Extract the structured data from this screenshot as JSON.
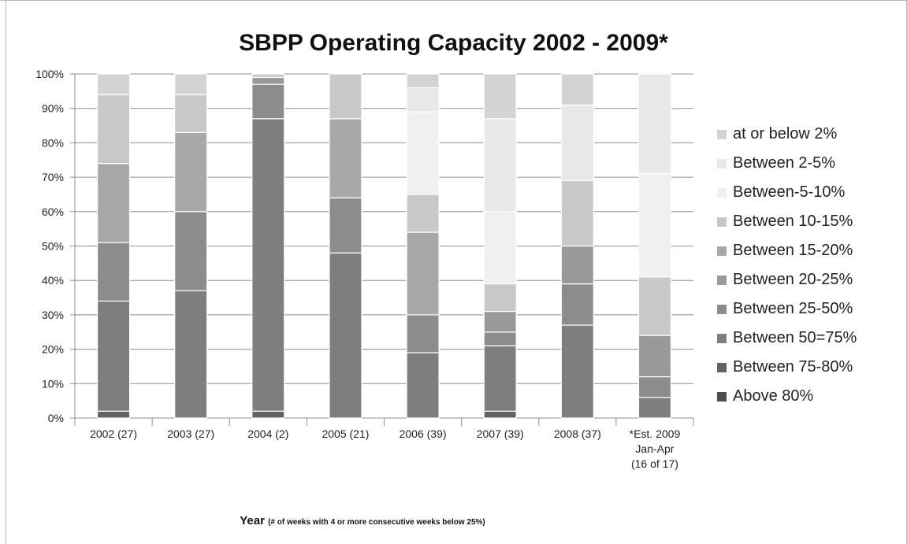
{
  "chart_data": {
    "type": "bar",
    "stacked": true,
    "title": "SBPP Operating Capacity 2002 - 2009*",
    "xlabel": "Year",
    "xlabel_note": "(# of weeks with 4 or more consecutive weeks below 25%)",
    "ylabel": "",
    "ylim": [
      0,
      100
    ],
    "yticks": [
      "0%",
      "10%",
      "20%",
      "30%",
      "40%",
      "50%",
      "60%",
      "70%",
      "80%",
      "90%",
      "100%"
    ],
    "grid": true,
    "legend_position": "right",
    "categories": [
      [
        "2002 (27)"
      ],
      [
        "2003 (27)"
      ],
      [
        "2004 (2)"
      ],
      [
        "2005 (21)"
      ],
      [
        "2006 (39)"
      ],
      [
        "2007 (39)"
      ],
      [
        "2008 (37)"
      ],
      [
        "*Est. 2009",
        "Jan-Apr",
        "(16 of 17)"
      ]
    ],
    "series": [
      {
        "name": "Above 80%",
        "color": "#4d4d4d",
        "values": [
          0,
          0,
          0,
          0,
          0,
          0,
          0,
          0
        ]
      },
      {
        "name": "Between 75-80%",
        "color": "#636363",
        "values": [
          2,
          0,
          2,
          0,
          0,
          2,
          0,
          0
        ]
      },
      {
        "name": "Between 50=75%",
        "color": "#7e7e7e",
        "values": [
          32,
          37,
          85,
          48,
          19,
          19,
          27,
          6
        ]
      },
      {
        "name": "Between 25-50%",
        "color": "#8c8c8c",
        "values": [
          17,
          23,
          10,
          16,
          11,
          4,
          12,
          6
        ]
      },
      {
        "name": "Between 20-25%",
        "color": "#999999",
        "values": [
          0,
          0,
          2,
          0,
          0,
          6,
          11,
          12
        ]
      },
      {
        "name": "Between 15-20%",
        "color": "#a8a8a8",
        "values": [
          23,
          23,
          0,
          23,
          24,
          0,
          0,
          0
        ]
      },
      {
        "name": "Between 10-15%",
        "color": "#c8c8c8",
        "values": [
          20,
          11,
          1,
          13,
          11,
          8,
          19,
          17
        ]
      },
      {
        "name": "Between-5-10%",
        "color": "#f0f0f0",
        "values": [
          0,
          0,
          0,
          0,
          24,
          21,
          0,
          30
        ]
      },
      {
        "name": "Between 2-5%",
        "color": "#e8e8e8",
        "values": [
          0,
          0,
          0,
          0,
          7,
          27,
          22,
          29
        ]
      },
      {
        "name": "at or below 2%",
        "color": "#d3d3d3",
        "values": [
          6,
          6,
          0,
          0,
          4,
          13,
          9,
          0
        ]
      }
    ],
    "legend_order": [
      9,
      8,
      7,
      6,
      5,
      4,
      3,
      2,
      1,
      0
    ]
  }
}
